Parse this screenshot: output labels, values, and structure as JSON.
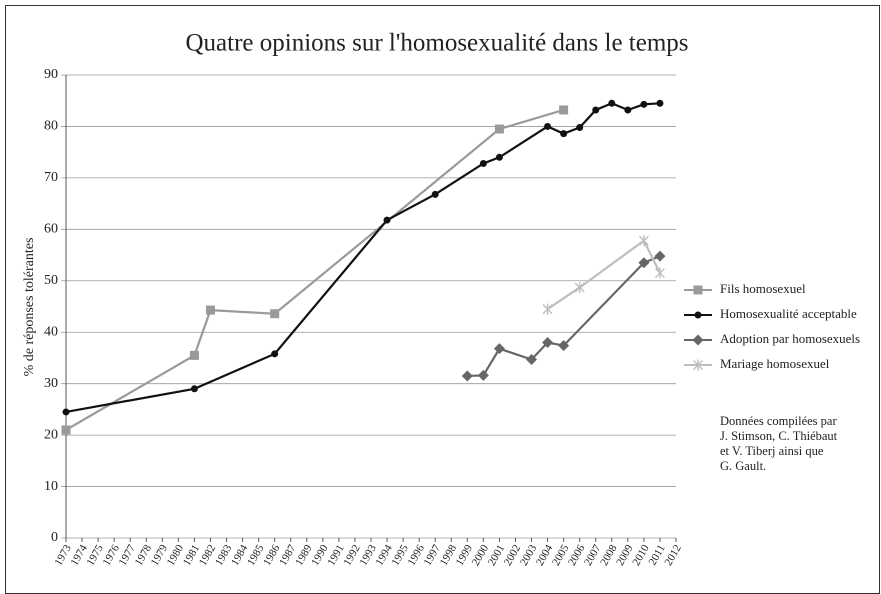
{
  "chart_data": {
    "type": "line",
    "title": "Quatre opinions sur l'homosexualité dans le temps",
    "y_label": "% de réponses tolérantes",
    "categories": [
      "1973",
      "1974",
      "1975",
      "1976",
      "1977",
      "1978",
      "1979",
      "1980",
      "1981",
      "1982",
      "1983",
      "1984",
      "1985",
      "1986",
      "1987",
      "1989",
      "1990",
      "1991",
      "1992",
      "1993",
      "1994",
      "1995",
      "1996",
      "1997",
      "1998",
      "1999",
      "2000",
      "2001",
      "2002",
      "2003",
      "2004",
      "2005",
      "2006",
      "2007",
      "2008",
      "2009",
      "2010",
      "2011",
      "2012"
    ],
    "series": [
      {
        "name": "Fils homosexuel",
        "color": "#9a9a9a",
        "marker": "square",
        "x": [
          "1973",
          "1981",
          "1982",
          "1986",
          "2001",
          "2005"
        ],
        "values": [
          21,
          35.5,
          44.3,
          43.6,
          79.5,
          83.2
        ]
      },
      {
        "name": "Homosexualité acceptable",
        "color": "#111111",
        "marker": "circle",
        "x": [
          "1973",
          "1981",
          "1986",
          "1994",
          "1997",
          "2000",
          "2001",
          "2004",
          "2005",
          "2006",
          "2007",
          "2008",
          "2009",
          "2010",
          "2011"
        ],
        "values": [
          24.5,
          29,
          35.8,
          61.8,
          66.8,
          72.8,
          74,
          80,
          78.6,
          79.8,
          83.2,
          84.5,
          83.2,
          84.3,
          84.5
        ]
      },
      {
        "name": "Adoption par homosexuels",
        "color": "#666666",
        "marker": "diamond",
        "x": [
          "1999",
          "2000",
          "2001",
          "2003",
          "2004",
          "2005",
          "2010",
          "2011"
        ],
        "values": [
          31.5,
          31.6,
          36.8,
          34.7,
          38,
          37.4,
          53.5,
          54.8
        ]
      },
      {
        "name": "Mariage homosexuel",
        "color": "#bdbdbd",
        "marker": "star",
        "x": [
          "2004",
          "2006",
          "2010",
          "2011"
        ],
        "values": [
          44.5,
          48.7,
          57.8,
          51.5
        ]
      }
    ],
    "ylim": [
      0,
      90
    ],
    "yticks": [
      0,
      10,
      20,
      30,
      40,
      50,
      60,
      70,
      80,
      90
    ],
    "grid": true,
    "legend": "right",
    "note": [
      "Données compilées par",
      "J. Stimson, C. Thiébaut",
      "et V. Tiberj ainsi que",
      "G. Gault."
    ]
  }
}
